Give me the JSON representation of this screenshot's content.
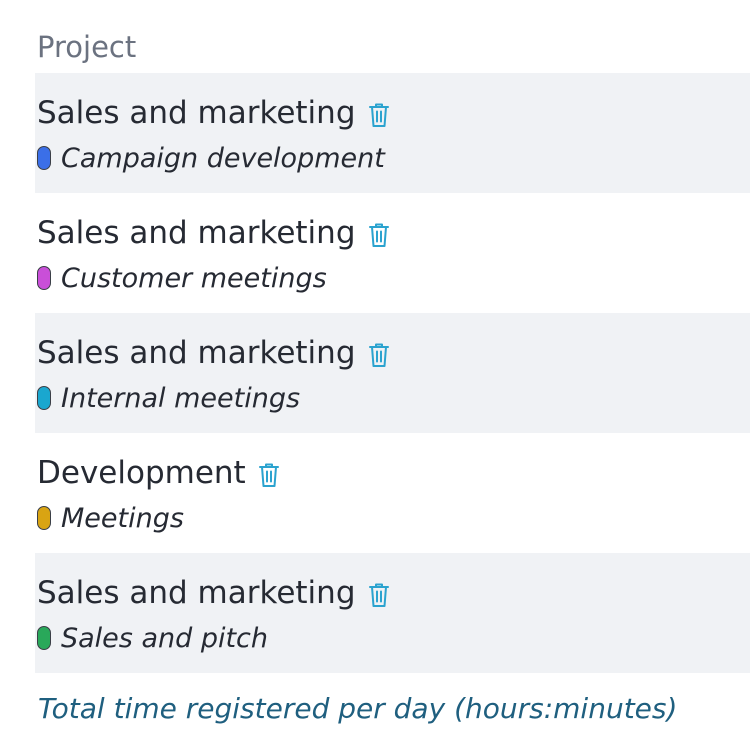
{
  "header": {
    "title": "Project"
  },
  "rows": [
    {
      "project": "Sales and marketing",
      "task": "Campaign development",
      "color": "#3b6fe8",
      "shaded": true
    },
    {
      "project": "Sales and marketing",
      "task": "Customer meetings",
      "color": "#c94fd8",
      "shaded": false
    },
    {
      "project": "Sales and marketing",
      "task": "Internal meetings",
      "color": "#1aa7cf",
      "shaded": true
    },
    {
      "project": "Development",
      "task": "Meetings",
      "color": "#d9a413",
      "shaded": false
    },
    {
      "project": "Sales and marketing",
      "task": "Sales and pitch",
      "color": "#29a85a",
      "shaded": true
    }
  ],
  "icons": {
    "delete": "trash-icon"
  },
  "footer": {
    "label": "Total time registered per day (hours:minutes)"
  }
}
